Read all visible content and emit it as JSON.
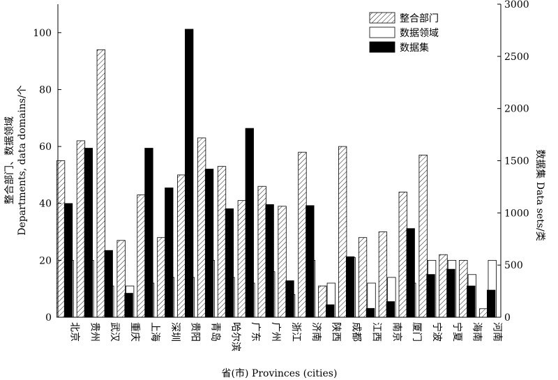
{
  "chart_data": {
    "type": "bar",
    "categories": [
      "北京",
      "贵州",
      "武汉",
      "重庆",
      "上海",
      "深圳",
      "贵阳",
      "青岛",
      "哈尔滨",
      "广东",
      "广州",
      "浙江",
      "济南",
      "陕西",
      "成都",
      "江西",
      "南京",
      "厦门",
      "宁波",
      "宁夏",
      "海南",
      "河南"
    ],
    "series": [
      {
        "name": "整合部门",
        "axis": "left",
        "pattern": "hatch",
        "values": [
          55,
          62,
          94,
          27,
          43,
          28,
          50,
          63,
          53,
          41,
          46,
          39,
          58,
          11,
          60,
          28,
          30,
          44,
          57,
          22,
          20,
          3
        ]
      },
      {
        "name": "数据领域",
        "axis": "left",
        "pattern": "white",
        "values": [
          20,
          20,
          11,
          11,
          12,
          14,
          14,
          20,
          14,
          12,
          16,
          8,
          20,
          12,
          21,
          12,
          14,
          12,
          20,
          20,
          15,
          20
        ]
      },
      {
        "name": "数据集",
        "axis": "right",
        "pattern": "black",
        "values": [
          1090,
          1620,
          640,
          230,
          1620,
          1240,
          2760,
          1420,
          1040,
          1810,
          1080,
          350,
          1070,
          120,
          580,
          85,
          150,
          850,
          410,
          460,
          300,
          260
        ]
      }
    ],
    "ylabel_left": "整合部门、数据领域\nDepartments, data domains/个",
    "ylabel_right": "数据集 Data sets/类",
    "xlabel": "省(市) Provinces (cities)",
    "ylim_left": [
      0,
      110
    ],
    "ylim_right": [
      0,
      3000
    ],
    "yticks_left": [
      "0",
      "20",
      "40",
      "60",
      "80",
      "100"
    ],
    "yticks_right": [
      "0",
      "500",
      "1000",
      "1500",
      "2000",
      "2500",
      "3000"
    ],
    "legend_position": "top-right",
    "grid": false,
    "colors": {
      "bar_edge": "#000000",
      "black_fill": "#000000",
      "white_fill": "#ffffff"
    }
  }
}
